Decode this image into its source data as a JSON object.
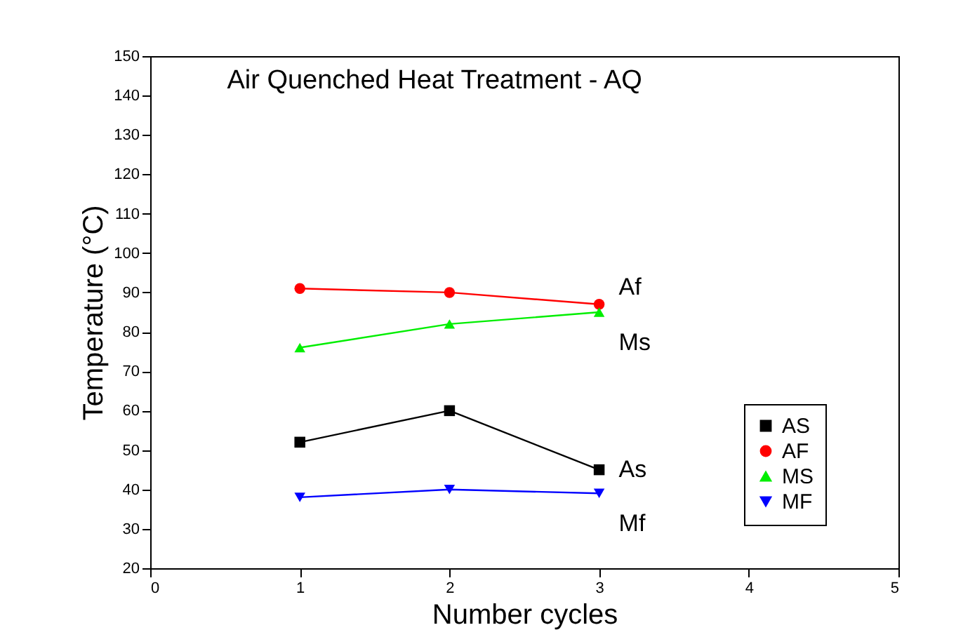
{
  "chart_data": {
    "type": "line",
    "title": "Air Quenched Heat Treatment - AQ",
    "xlabel": "Number cycles",
    "ylabel": "Temperature (°C)",
    "x": [
      1,
      2,
      3
    ],
    "series": [
      {
        "name": "AS",
        "color": "#000000",
        "marker": "square",
        "values": [
          52,
          60,
          45
        ]
      },
      {
        "name": "AF",
        "color": "#ff0000",
        "marker": "circle",
        "values": [
          91,
          90,
          87
        ]
      },
      {
        "name": "MS",
        "color": "#00ee00",
        "marker": "triangle",
        "values": [
          76,
          82,
          85
        ]
      },
      {
        "name": "MF",
        "color": "#0000ff",
        "marker": "triangle-down",
        "values": [
          38,
          40,
          39
        ]
      }
    ],
    "annotations": [
      "Af",
      "Ms",
      "As",
      "Mf"
    ],
    "xlim": [
      0,
      5
    ],
    "xticks": [
      0,
      1,
      2,
      3,
      4,
      5
    ],
    "ylim": [
      20,
      150
    ],
    "yticks": [
      20,
      30,
      40,
      50,
      60,
      70,
      80,
      90,
      100,
      110,
      120,
      130,
      140,
      150
    ],
    "grid": false,
    "legend": "bottom right",
    "line_style": "solid"
  }
}
